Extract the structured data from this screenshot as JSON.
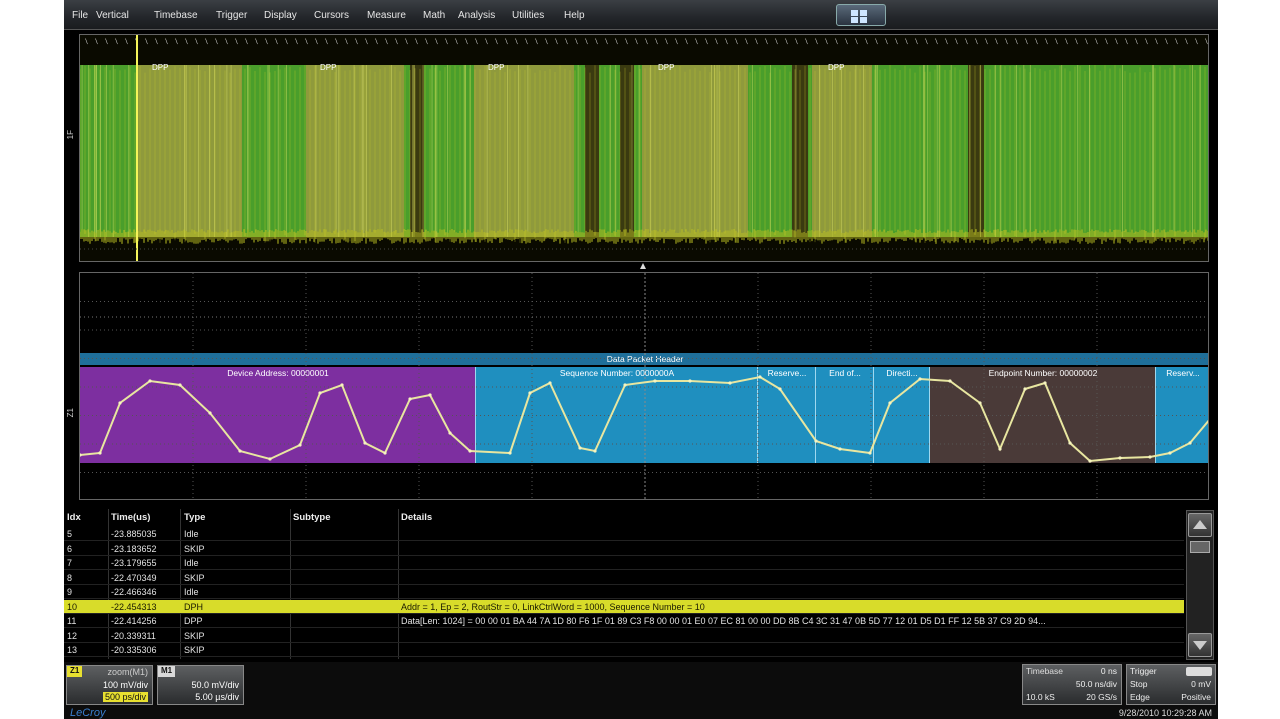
{
  "menu": [
    "File",
    "Vertical",
    "Timebase",
    "Trigger",
    "Display",
    "Cursors",
    "Measure",
    "Math",
    "Analysis",
    "Utilities",
    "Help"
  ],
  "colors": {
    "trace": "#d4d62a",
    "green": "#4a9e2b",
    "purple": "#7d2fa0",
    "blue": "#1f8fbf",
    "brown": "#4a3a38",
    "selected": "#d8dc2a"
  },
  "top_trace": {
    "channel_label": "1F",
    "dpp_labels": [
      "DPP",
      "DPP",
      "DPP",
      "DPP",
      "DPP"
    ]
  },
  "decode": {
    "channel_label": "Z1",
    "header_title": "Data Packet Header",
    "segments": [
      {
        "label": "Device Address: 00000001",
        "color": "purple"
      },
      {
        "label": "Sequence Number: 0000000A",
        "color": "blue"
      },
      {
        "label": "Reserve...",
        "color": "blue"
      },
      {
        "label": "End of...",
        "color": "blue"
      },
      {
        "label": "Directi...",
        "color": "blue"
      },
      {
        "label": "Endpoint Number: 00000002",
        "color": "brown"
      },
      {
        "label": "Reserv...",
        "color": "blue"
      }
    ]
  },
  "table": {
    "headers": [
      "Idx",
      "Time(us)",
      "Type",
      "Subtype",
      "Details"
    ],
    "rows": [
      {
        "idx": "5",
        "time": "-23.885035",
        "type": "Idle",
        "subtype": "",
        "details": ""
      },
      {
        "idx": "6",
        "time": "-23.183652",
        "type": "SKIP",
        "subtype": "",
        "details": ""
      },
      {
        "idx": "7",
        "time": "-23.179655",
        "type": "Idle",
        "subtype": "",
        "details": ""
      },
      {
        "idx": "8",
        "time": "-22.470349",
        "type": "SKIP",
        "subtype": "",
        "details": ""
      },
      {
        "idx": "9",
        "time": "-22.466346",
        "type": "Idle",
        "subtype": "",
        "details": ""
      },
      {
        "idx": "10",
        "time": "-22.454313",
        "type": "DPH",
        "subtype": "",
        "details": "Addr = 1, Ep = 2, RoutStr = 0, LinkCtrlWord = 1000, Sequence Number = 10",
        "selected": true
      },
      {
        "idx": "11",
        "time": "-22.414256",
        "type": "DPP",
        "subtype": "",
        "details": "Data[Len: 1024] = 00 00 01 BA 44 7A 1D 80 F6 1F 01 89 C3 F8 00 00 01 E0 07 EC 81 00 00 DD 8B C4 3C 31 47 0B 5D 77 12 01 D5 D1 FF 12 5B 37 C9 2D 94..."
      },
      {
        "idx": "12",
        "time": "-20.339311",
        "type": "SKIP",
        "subtype": "",
        "details": ""
      },
      {
        "idx": "13",
        "time": "-20.335306",
        "type": "SKIP",
        "subtype": "",
        "details": ""
      }
    ]
  },
  "status": {
    "z1": {
      "tag": "Z1",
      "name": "zoom(M1)",
      "vdiv": "100 mV/div",
      "tdiv": "500 ps/div"
    },
    "m1": {
      "tag": "M1",
      "vdiv": "50.0 mV/div",
      "tdiv": "5.00 µs/div"
    },
    "brand": "LeCroy",
    "timebase": {
      "title": "Timebase",
      "delay": "0 ns",
      "tdiv": "50.0 ns/div",
      "samples": "10.0 kS",
      "rate": "20 GS/s"
    },
    "trigger": {
      "title": "Trigger",
      "mode": "Stop",
      "level": "0 mV",
      "type": "Edge",
      "slope": "Positive"
    },
    "datetime": "9/28/2010 10:29:28 AM"
  }
}
